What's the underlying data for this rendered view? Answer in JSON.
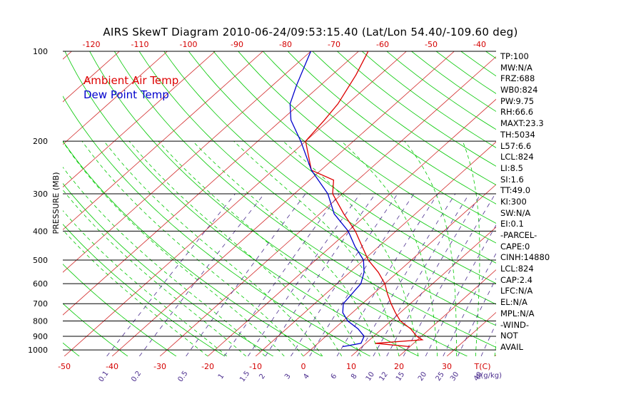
{
  "title": "AIRS SkewT Diagram 2010-06-24/09:53:15.40 (Lat/Lon 54.40/-109.60 deg)",
  "colors": {
    "isotherm": "#d22a2a",
    "dry_adiabat": "#00c800",
    "moist_adiabat": "#00c800",
    "mixing_ratio": "#4b2d8e",
    "isobar": "#000000",
    "axis_text": "#d40000",
    "mixing_text": "#4b2d8e",
    "temp_line": "#dd0000",
    "dewpoint_line": "#0000cc",
    "legend_temp": "#dd0000",
    "legend_dewpoint": "#0000cc"
  },
  "stats": [
    "TP:100",
    "MW:N/A",
    "FRZ:688",
    "WB0:824",
    "PW:9.75",
    "RH:66.6",
    "MAXT:23.3",
    "TH:5034",
    "L57:6.6",
    "LCL:824",
    "LI:8.5",
    "SI:1.6",
    "TT:49.0",
    "KI:300",
    "SW:N/A",
    "EI:0.1",
    "-PARCEL-",
    "CAPE:0",
    "CINH:14880",
    "LCL:824",
    "CAP:2.4",
    "LFC:N/A",
    "EL:N/A",
    "MPL:N/A",
    "-WIND-",
    "NOT",
    "AVAIL"
  ],
  "chart_data": {
    "type": "line",
    "chart_kind": "skew-T log-P diagram",
    "ylabel": "PRESSURE (MB)",
    "y_scale": "log",
    "y_range_mb": [
      1000,
      100
    ],
    "pressure_ticks": [
      100,
      200,
      300,
      400,
      500,
      600,
      700,
      800,
      900,
      1000
    ],
    "bottom_temp_ticks": [
      -50,
      -40,
      -30,
      -20,
      -10,
      0,
      10,
      20,
      30
    ],
    "bottom_axis_unit": "T(C)",
    "top_temp_ticks": [
      -120,
      -110,
      -100,
      -90,
      -80,
      -70,
      -60,
      -50,
      -40
    ],
    "mixing_ratio_labels": [
      "0.1",
      "0.2",
      "0.5",
      "1",
      "1.5",
      "2",
      "3",
      "4",
      "6",
      "8",
      "10",
      "12",
      "15",
      "20",
      "25",
      "30",
      "40"
    ],
    "mixing_ratio_unit": "q(g/kg)",
    "legend": [
      "Ambient Air Temp",
      "Dew Point Temp"
    ],
    "legend_position": "top-left",
    "series": [
      {
        "name": "Ambient Air Temp",
        "points": [
          [
            975,
            20
          ],
          [
            950,
            12
          ],
          [
            925,
            21
          ],
          [
            900,
            19
          ],
          [
            850,
            16
          ],
          [
            800,
            12
          ],
          [
            750,
            9
          ],
          [
            700,
            6
          ],
          [
            650,
            3
          ],
          [
            600,
            0
          ],
          [
            550,
            -4
          ],
          [
            500,
            -9
          ],
          [
            450,
            -13.5
          ],
          [
            400,
            -18.5
          ],
          [
            350,
            -25
          ],
          [
            300,
            -32
          ],
          [
            270,
            -35
          ],
          [
            250,
            -42
          ],
          [
            200,
            -50
          ],
          [
            170,
            -51
          ],
          [
            150,
            -52
          ],
          [
            120,
            -55
          ],
          [
            100,
            -58
          ]
        ]
      },
      {
        "name": "Dew Point Temp",
        "points": [
          [
            975,
            6
          ],
          [
            950,
            9
          ],
          [
            900,
            8
          ],
          [
            850,
            5
          ],
          [
            800,
            1
          ],
          [
            750,
            -2
          ],
          [
            700,
            -4
          ],
          [
            600,
            -5
          ],
          [
            550,
            -7
          ],
          [
            500,
            -10
          ],
          [
            450,
            -15
          ],
          [
            400,
            -20
          ],
          [
            350,
            -27
          ],
          [
            300,
            -33
          ],
          [
            250,
            -42
          ],
          [
            200,
            -51
          ],
          [
            170,
            -58
          ],
          [
            150,
            -62
          ],
          [
            130,
            -65
          ],
          [
            100,
            -70
          ]
        ]
      }
    ]
  }
}
